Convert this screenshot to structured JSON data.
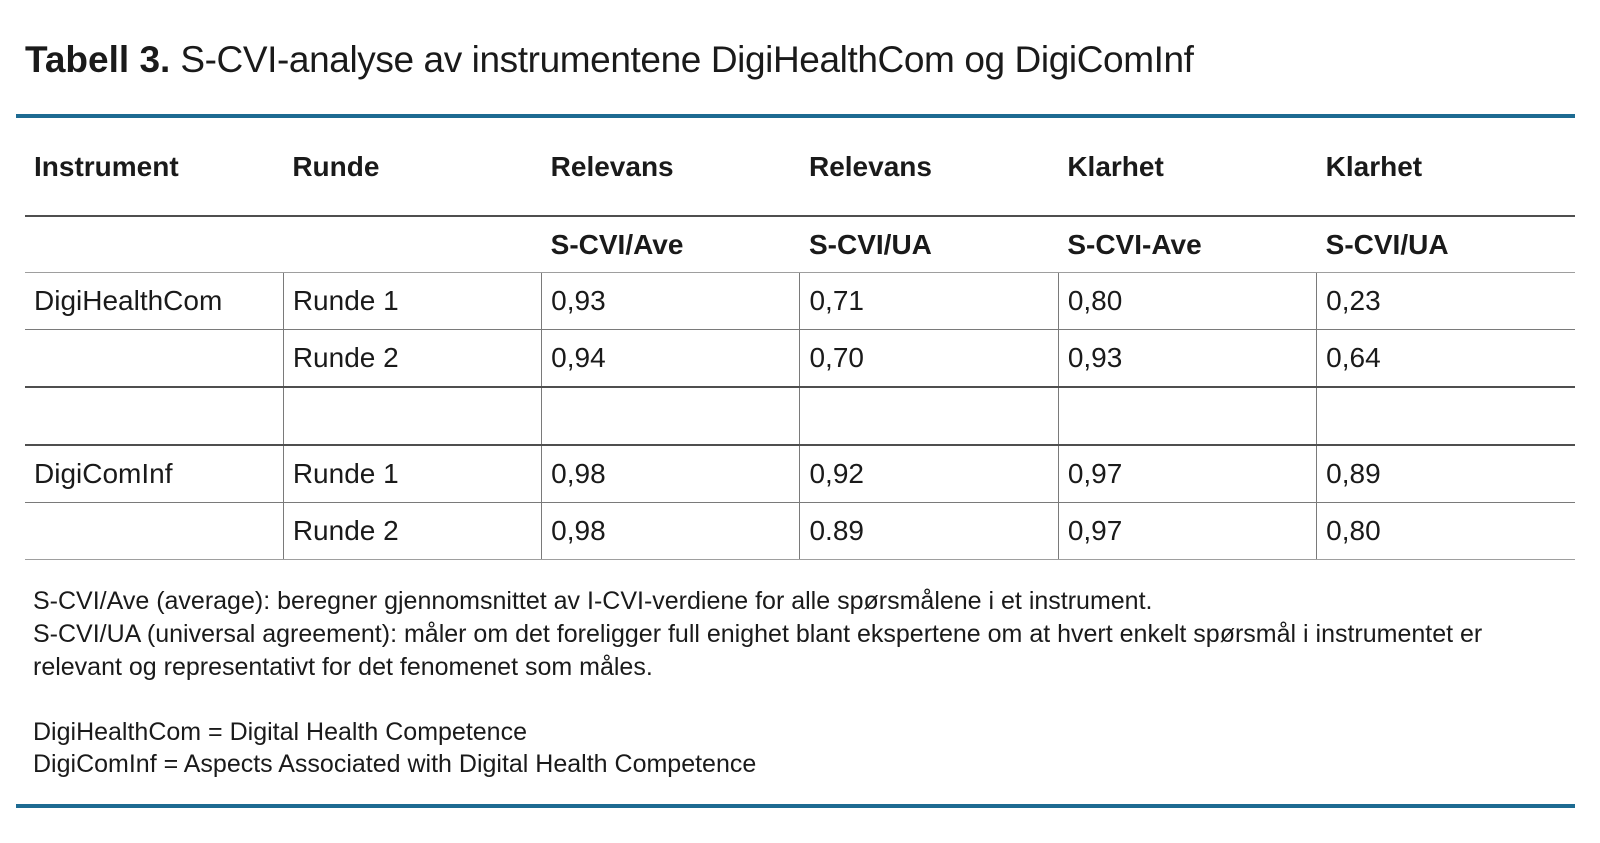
{
  "colors": {
    "accent": "#1d6b92"
  },
  "title": {
    "label": "Tabell 3.",
    "text": "S-CVI-analyse av instrumentene DigiHealthCom og DigiComInf"
  },
  "table": {
    "columns": [
      "Instrument",
      "Runde",
      "Relevans",
      "Relevans",
      "Klarhet",
      "Klarhet"
    ],
    "subheaders": [
      "",
      "",
      "S-CVI/Ave",
      "S-CVI/UA",
      "S-CVI-Ave",
      "S-CVI/UA"
    ],
    "rows": [
      [
        "DigiHealthCom",
        "Runde 1",
        "0,93",
        "0,71",
        "0,80",
        "0,23"
      ],
      [
        "",
        "Runde 2",
        "0,94",
        "0,70",
        "0,93",
        "0,64"
      ],
      [
        "",
        "",
        "",
        "",
        "",
        ""
      ],
      [
        "DigiComInf",
        "Runde 1",
        "0,98",
        "0,92",
        "0,97",
        "0,89"
      ],
      [
        "",
        "Runde 2",
        "0,98",
        "0.89",
        "0,97",
        "0,80"
      ]
    ]
  },
  "footnotes": {
    "definitions": [
      "S-CVI/Ave (average): beregner gjennomsnittet av I-CVI-verdiene for alle spørsmålene i et instrument.",
      "S-CVI/UA (universal agreement): måler om det foreligger full enighet blant ekspertene om at hvert enkelt spørsmål i instrumentet er relevant og representativt for det fenomenet som måles."
    ],
    "abbreviations": [
      "DigiHealthCom = Digital Health Competence",
      "DigiComInf = Aspects Associated with Digital Health Competence"
    ]
  }
}
